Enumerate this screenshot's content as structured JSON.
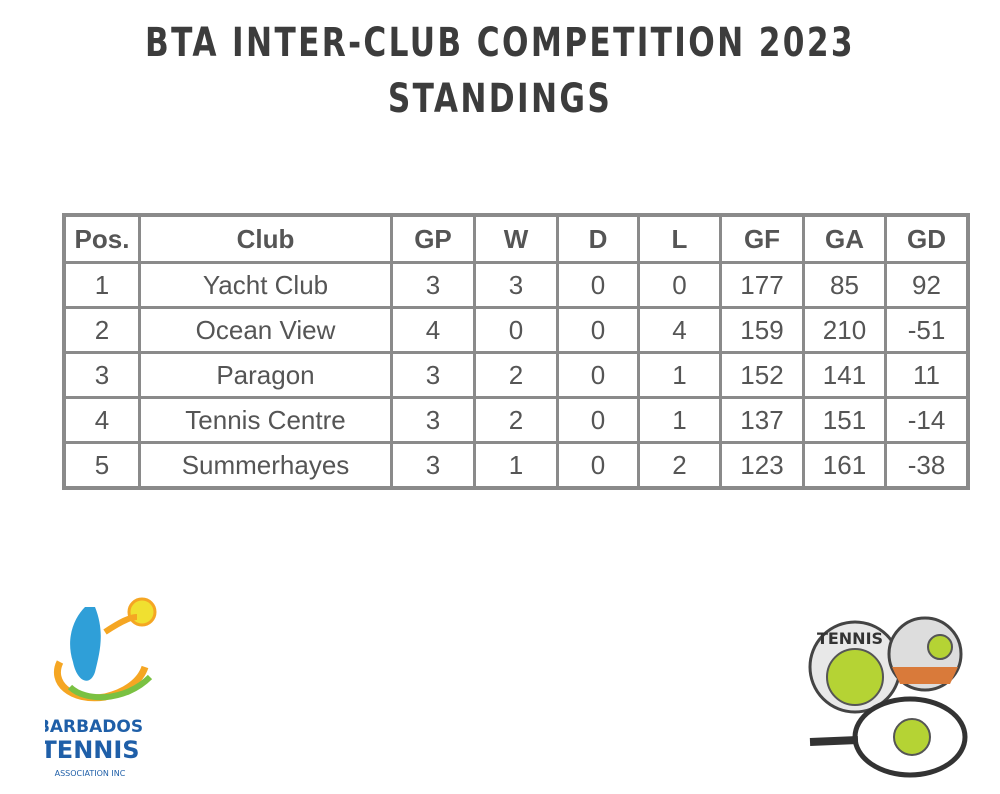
{
  "header": {
    "title": "BTA INTER-CLUB COMPETITION 2023",
    "subtitle": "STANDINGS"
  },
  "table": {
    "columns": [
      "Pos.",
      "Club",
      "GP",
      "W",
      "D",
      "L",
      "GF",
      "GA",
      "GD"
    ],
    "rows": [
      [
        1,
        "Yacht Club",
        3,
        3,
        0,
        0,
        177,
        85,
        92
      ],
      [
        2,
        "Ocean View",
        4,
        0,
        0,
        4,
        159,
        210,
        -51
      ],
      [
        3,
        "Paragon",
        3,
        2,
        0,
        1,
        152,
        141,
        11
      ],
      [
        4,
        "Tennis Centre",
        3,
        2,
        0,
        1,
        137,
        151,
        -14
      ],
      [
        5,
        "Summerhayes",
        3,
        1,
        0,
        2,
        123,
        161,
        -38
      ]
    ]
  },
  "logos": {
    "left": {
      "line1": "BARBADOS",
      "line2": "TENNIS",
      "line3": "ASSOCIATION INC"
    },
    "right": {
      "badge": "TENNIS"
    }
  }
}
